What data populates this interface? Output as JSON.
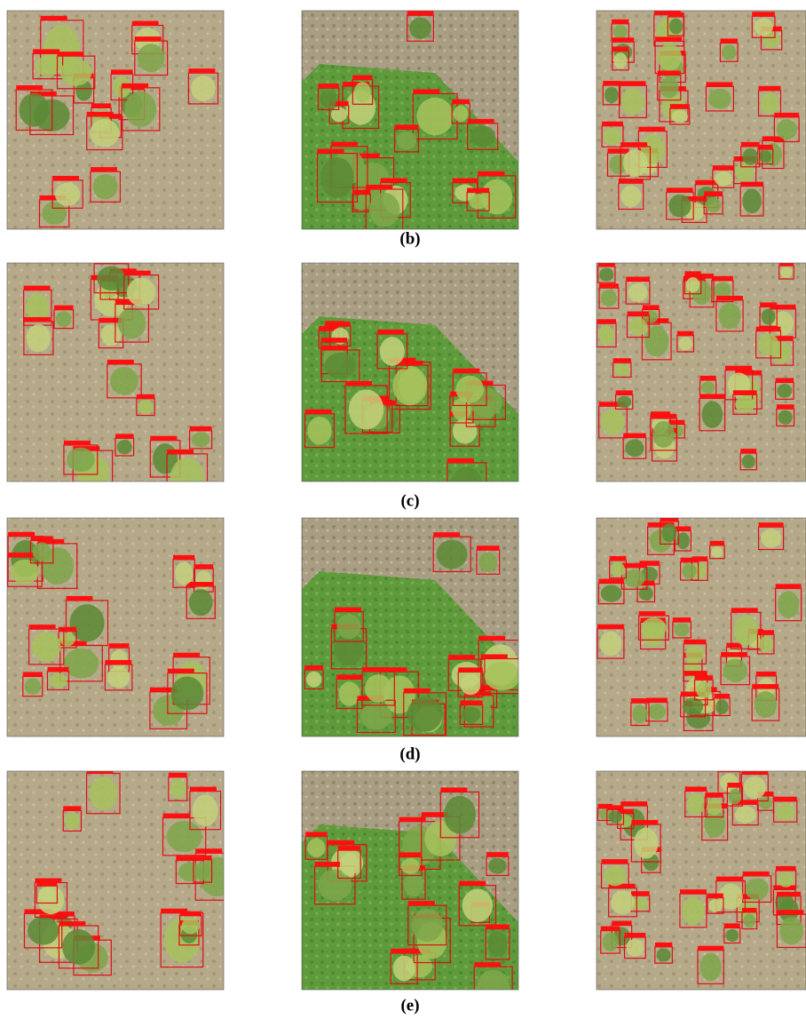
{
  "figure": {
    "rows": [
      {
        "caption": "(b)"
      },
      {
        "caption": "(c)"
      },
      {
        "caption": "(d)"
      },
      {
        "caption": "(e)"
      }
    ]
  }
}
